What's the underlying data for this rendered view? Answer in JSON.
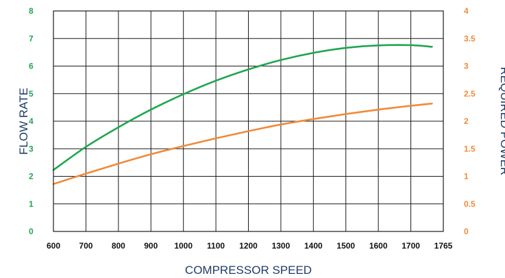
{
  "chart_data": {
    "type": "line",
    "title": "",
    "xlabel": "COMPRESSOR SPEED",
    "ylabel_left": "FLOW RATE",
    "ylabel_right": "REQUIRED POWER",
    "x_categories": [
      "600",
      "700",
      "800",
      "900",
      "1000",
      "1100",
      "1200",
      "1300",
      "1400",
      "1500",
      "1600",
      "1700",
      "1765"
    ],
    "y_left": {
      "ylim": [
        0,
        8
      ],
      "ticks": [
        "0",
        "1",
        "2",
        "3",
        "4",
        "5",
        "6",
        "7",
        "8"
      ],
      "color": "#1fa650"
    },
    "y_right": {
      "ylim": [
        0,
        4
      ],
      "ticks": [
        "0",
        "0.5",
        "1",
        "1.5",
        "2",
        "2.5",
        "3",
        "3.5",
        "4"
      ],
      "color": "#ef8a3a"
    },
    "grid": true,
    "legend": "none",
    "series": [
      {
        "axis": "left",
        "color": "#1fa650",
        "points": [
          [
            600,
            2.23
          ],
          [
            700,
            3.07
          ],
          [
            800,
            3.78
          ],
          [
            900,
            4.42
          ],
          [
            1000,
            4.98
          ],
          [
            1100,
            5.47
          ],
          [
            1200,
            5.88
          ],
          [
            1300,
            6.22
          ],
          [
            1400,
            6.48
          ],
          [
            1500,
            6.66
          ],
          [
            1600,
            6.75
          ],
          [
            1700,
            6.76
          ],
          [
            1765,
            6.7
          ]
        ]
      },
      {
        "axis": "right",
        "color": "#ef8a3a",
        "points": [
          [
            600,
            0.86
          ],
          [
            700,
            1.05
          ],
          [
            800,
            1.23
          ],
          [
            900,
            1.4
          ],
          [
            1000,
            1.55
          ],
          [
            1100,
            1.69
          ],
          [
            1200,
            1.82
          ],
          [
            1300,
            1.94
          ],
          [
            1400,
            2.04
          ],
          [
            1500,
            2.13
          ],
          [
            1600,
            2.21
          ],
          [
            1700,
            2.28
          ],
          [
            1765,
            2.32
          ]
        ]
      }
    ]
  }
}
